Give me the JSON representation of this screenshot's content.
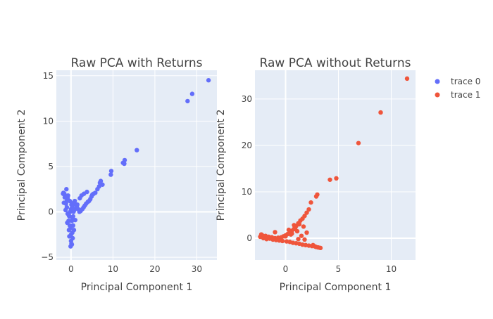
{
  "chart_data": [
    {
      "type": "scatter",
      "title": "Raw PCA with Returns",
      "xlabel": "Principal Component 1",
      "ylabel": "Principal Component 2",
      "xlim": [
        -3.5,
        34.8
      ],
      "ylim": [
        -5.3,
        15.6
      ],
      "xticks": [
        0,
        10,
        20,
        30
      ],
      "yticks": [
        -5,
        0,
        5,
        10,
        15
      ],
      "color": "#636efa",
      "series": [
        {
          "name": "trace 0",
          "x": [
            32.8,
            28.9,
            27.8,
            15.7,
            12.8,
            12.7,
            12.4,
            9.6,
            9.5,
            7.5,
            7.1,
            6.9,
            6.7,
            6.3,
            5.8,
            5.4,
            5.1,
            4.9,
            4.6,
            4.3,
            4.0,
            3.6,
            3.3,
            3.0,
            2.7,
            2.3,
            2.0,
            1.7,
            1.4,
            1.2,
            0.9,
            0.6,
            0.3,
            0.0,
            -0.2,
            -0.4,
            -0.6,
            -0.8,
            -1.0,
            -1.2,
            -1.4,
            -1.6,
            -1.8,
            -1.5,
            -1.1,
            -0.7,
            -0.3,
            0.1,
            0.4,
            0.6,
            0.2,
            -0.5,
            -0.9,
            -1.3,
            -0.1,
            0.3,
            0.5,
            -0.8,
            -0.4,
            0.0,
            0.2,
            -0.1,
            0.4,
            0.7,
            1.0,
            1.5,
            2.1,
            2.5,
            3.1,
            3.8,
            0.1,
            -0.3,
            0.0,
            0.2,
            0.5,
            0.8,
            -1.7,
            -1.9,
            -1.0,
            -0.5
          ],
          "y": [
            14.5,
            13.0,
            12.2,
            6.8,
            5.7,
            5.3,
            5.4,
            4.5,
            4.1,
            3.0,
            3.4,
            3.2,
            2.8,
            2.5,
            2.1,
            2.0,
            1.9,
            1.7,
            1.4,
            1.2,
            1.1,
            0.9,
            0.7,
            0.5,
            0.3,
            0.1,
            0.0,
            0.3,
            0.5,
            0.8,
            1.2,
            1.0,
            0.6,
            0.3,
            0.0,
            -0.5,
            -1.0,
            1.5,
            1.2,
            0.9,
            1.7,
            2.0,
            2.1,
            1.6,
            2.5,
            1.8,
            1.2,
            0.8,
            0.4,
            0.0,
            -0.6,
            -0.4,
            -1.2,
            0.2,
            -1.8,
            -2.3,
            -1.5,
            -0.2,
            -2.7,
            -3.2,
            -3.6,
            -3.8,
            -2.9,
            -2.0,
            -0.9,
            0.8,
            1.5,
            1.8,
            2.0,
            2.2,
            -3.5,
            -1.5,
            -2.5,
            -1.0,
            -0.5,
            0.2,
            1.0,
            2.0,
            0.5,
            -2.0
          ]
        }
      ]
    },
    {
      "type": "scatter",
      "title": "Raw PCA without Returns",
      "xlabel": "Principal Component 1",
      "ylabel": "Principal Component 2",
      "xlim": [
        -2.9,
        12.3
      ],
      "ylim": [
        -4.7,
        36.2
      ],
      "xticks": [
        0,
        5,
        10
      ],
      "yticks": [
        0,
        10,
        20,
        30
      ],
      "color": "#ef553b",
      "series": [
        {
          "name": "trace 1",
          "x": [
            11.5,
            9.0,
            6.9,
            4.8,
            4.2,
            3.0,
            2.9,
            2.4,
            2.2,
            2.0,
            1.8,
            1.6,
            1.4,
            1.2,
            1.0,
            0.8,
            0.6,
            0.4,
            0.2,
            0.0,
            -0.2,
            -0.4,
            -0.7,
            -1.0,
            -1.3,
            -1.6,
            -1.9,
            -2.2,
            -2.4,
            -2.1,
            -1.8,
            -1.5,
            -1.2,
            -0.9,
            -0.6,
            -0.3,
            0.1,
            0.4,
            0.7,
            1.0,
            1.3,
            1.6,
            1.9,
            2.2,
            2.5,
            2.8,
            3.1,
            3.3,
            1.5,
            1.1,
            0.9,
            0.6,
            0.3,
            1.7,
            2.0,
            1.3,
            0.8,
            0.5,
            1.2,
            2.6,
            -2.3,
            -1.0,
            0.0,
            1.8,
            2.9
          ],
          "y": [
            34.4,
            27.1,
            20.5,
            12.9,
            12.6,
            9.4,
            9.0,
            7.7,
            6.2,
            5.5,
            4.8,
            4.2,
            3.8,
            3.2,
            2.6,
            2.0,
            1.6,
            1.2,
            0.9,
            0.6,
            0.4,
            0.2,
            0.1,
            0.0,
            0.2,
            0.3,
            0.5,
            0.6,
            0.3,
            0.0,
            -0.2,
            -0.1,
            -0.3,
            -0.4,
            -0.5,
            -0.6,
            -0.7,
            -0.8,
            -1.0,
            -1.1,
            -1.2,
            -1.4,
            -1.5,
            -1.6,
            -1.7,
            -1.8,
            -2.0,
            -2.1,
            0.5,
            1.5,
            2.0,
            1.0,
            1.8,
            2.5,
            1.2,
            3.0,
            2.8,
            0.8,
            -0.2,
            -1.5,
            0.8,
            1.3,
            0.4,
            -0.3,
            -1.9
          ]
        }
      ]
    }
  ],
  "legend": {
    "placement": "top-right",
    "items": [
      {
        "label": "trace 0",
        "color": "#636efa"
      },
      {
        "label": "trace 1",
        "color": "#ef553b"
      }
    ]
  }
}
